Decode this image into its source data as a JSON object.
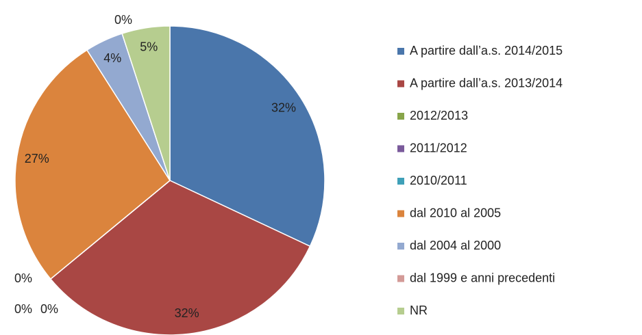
{
  "chart_data": {
    "type": "pie",
    "categories": [
      "A partire dall’a.s. 2014/2015",
      "A partire dall’a.s. 2013/2014",
      "2012/2013",
      "2011/2012",
      "2010/2011",
      "dal 2010 al 2005",
      "dal 2004 al 2000",
      "dal 1999 e anni precedenti",
      "NR"
    ],
    "values": [
      32,
      32,
      0,
      0,
      0,
      27,
      4,
      0,
      5
    ],
    "value_labels": [
      "32%",
      "32%",
      "0%",
      "0%",
      "0%",
      "27%",
      "4%",
      "0%",
      "5%"
    ],
    "colors": [
      "#4a76ab",
      "#a94744",
      "#88a54a",
      "#7a5a9b",
      "#3fa0b8",
      "#db843d",
      "#93a9d0",
      "#d39a97",
      "#b6cd8f"
    ],
    "legend": "right"
  }
}
